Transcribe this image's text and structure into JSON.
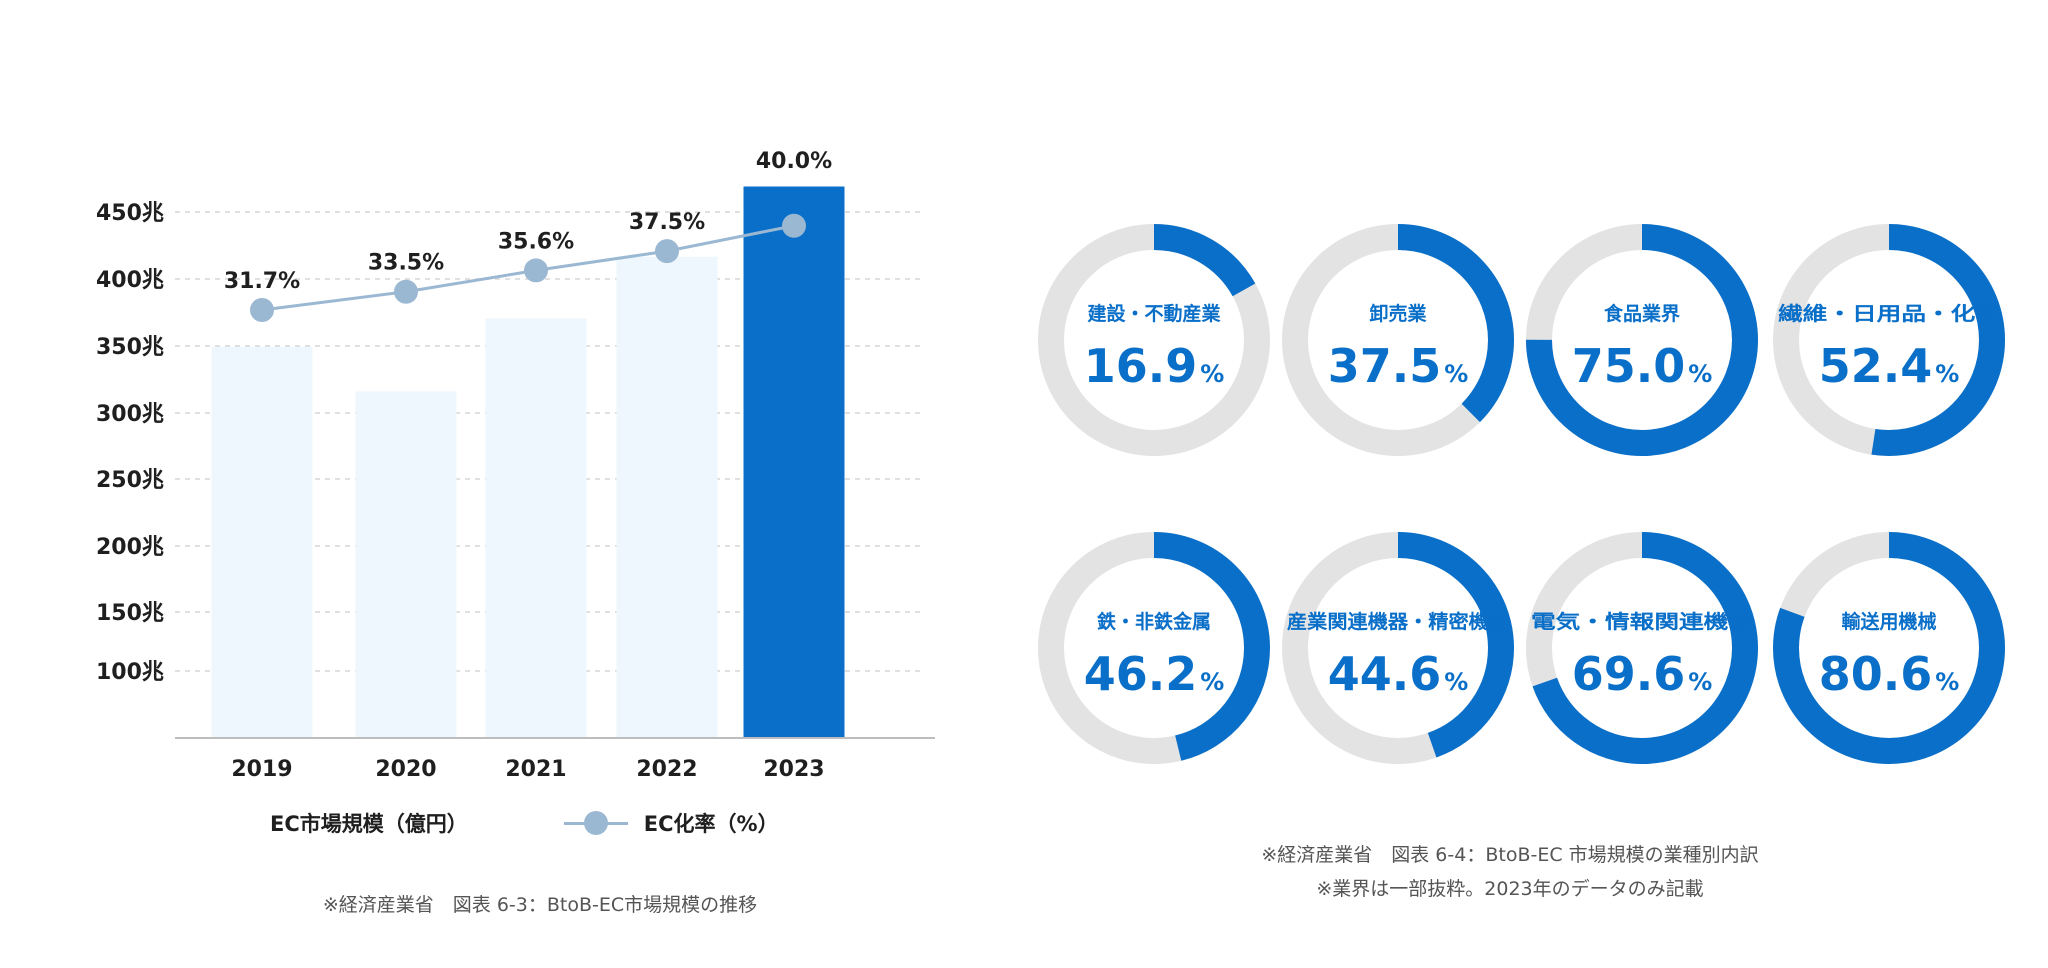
{
  "chart_data": [
    {
      "type": "bar",
      "categories": [
        "2019",
        "2020",
        "2021",
        "2022",
        "2023"
      ],
      "series": [
        {
          "name": "EC市場規模（億円）",
          "type": "bar",
          "values": [
            353,
            322,
            373,
            416,
            465
          ]
        },
        {
          "name": "EC化率（%）",
          "type": "line",
          "values": [
            31.7,
            33.5,
            35.6,
            37.5,
            40.0
          ],
          "labels": [
            "31.7%",
            "33.5%",
            "35.6%",
            "37.5%",
            "40.0%"
          ]
        }
      ],
      "yticks": [
        "450兆",
        "400兆",
        "350兆",
        "300兆",
        "250兆",
        "200兆",
        "150兆",
        "100兆"
      ],
      "highlight_index": 4,
      "grid": true,
      "legend_position": "bottom",
      "colors": {
        "bar": "#edf7fd",
        "bar_highlight": "#0a6fc8",
        "line": "#9bb8d3"
      }
    },
    {
      "type": "pie",
      "variant": "donut-grid",
      "items": [
        {
          "label": "建設・不動産業",
          "value": 16.9,
          "number": "16.9"
        },
        {
          "label": "卸売業",
          "value": 37.5,
          "number": "37.5"
        },
        {
          "label": "食品業界",
          "value": 75.0,
          "number": "75.0"
        },
        {
          "label": "繊維・日用品・化学",
          "value": 52.4,
          "number": "52.4"
        },
        {
          "label": "鉄・非鉄金属",
          "value": 46.2,
          "number": "46.2"
        },
        {
          "label": "産業関連機器・精密機器",
          "value": 44.6,
          "number": "44.6"
        },
        {
          "label": "電気・情報関連機器",
          "value": 69.6,
          "number": "69.6"
        },
        {
          "label": "輸送用機械",
          "value": 80.6,
          "number": "80.6"
        }
      ],
      "unit": "%",
      "colors": {
        "fill": "#0a6fc8",
        "track": "#e3e3e3",
        "text": "#0a6fc8"
      }
    }
  ],
  "legend": {
    "bar_label": "EC市場規模（億円）",
    "line_label": "EC化率（%）"
  },
  "notes": {
    "left": "※経済産業省　図表 6-3：BtoB-EC市場規模の推移",
    "right_line1": "※経済産業省　図表 6-4：BtoB-EC 市場規模の業種別内訳",
    "right_line2": "※業界は一部抜粋。2023年のデータのみ記載"
  }
}
